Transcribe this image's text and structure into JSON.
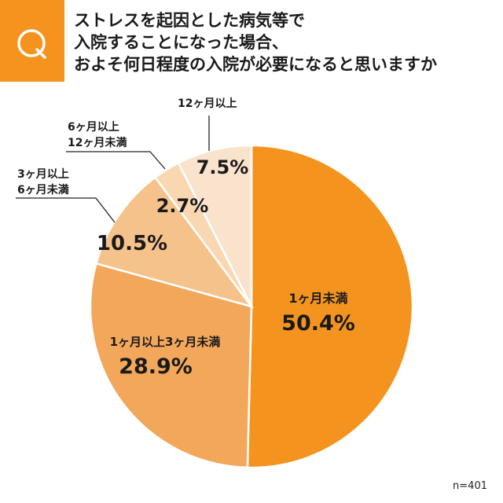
{
  "header": {
    "q_label": "Q",
    "title_lines": [
      "ストレスを起因とした病気等で",
      "入院することになった場合、",
      "およそ何日程度の入院が必要になると思いますか"
    ]
  },
  "sample_size": "n=401",
  "chart_data": {
    "type": "pie",
    "start_angle": "12 o'clock",
    "direction": "clockwise",
    "slices": [
      {
        "label": "1ヶ月未満",
        "value": 50.4,
        "value_label": "50.4%",
        "color": "#f4941f"
      },
      {
        "label": "1ヶ月以上3ヶ月未満",
        "value": 28.9,
        "value_label": "28.9%",
        "color": "#f3a75a"
      },
      {
        "label_lines": [
          "3ヶ月以上",
          "6ヶ月未満"
        ],
        "value": 10.5,
        "value_label": "10.5%",
        "color": "#f6c28b"
      },
      {
        "label_lines": [
          "6ヶ月以上",
          "12ヶ月未満"
        ],
        "value": 2.7,
        "value_label": "2.7%",
        "color": "#f9d7b1"
      },
      {
        "label_lines": [
          "12ヶ月以上"
        ],
        "value": 7.5,
        "value_label": "7.5%",
        "color": "#fae3cd"
      }
    ]
  }
}
